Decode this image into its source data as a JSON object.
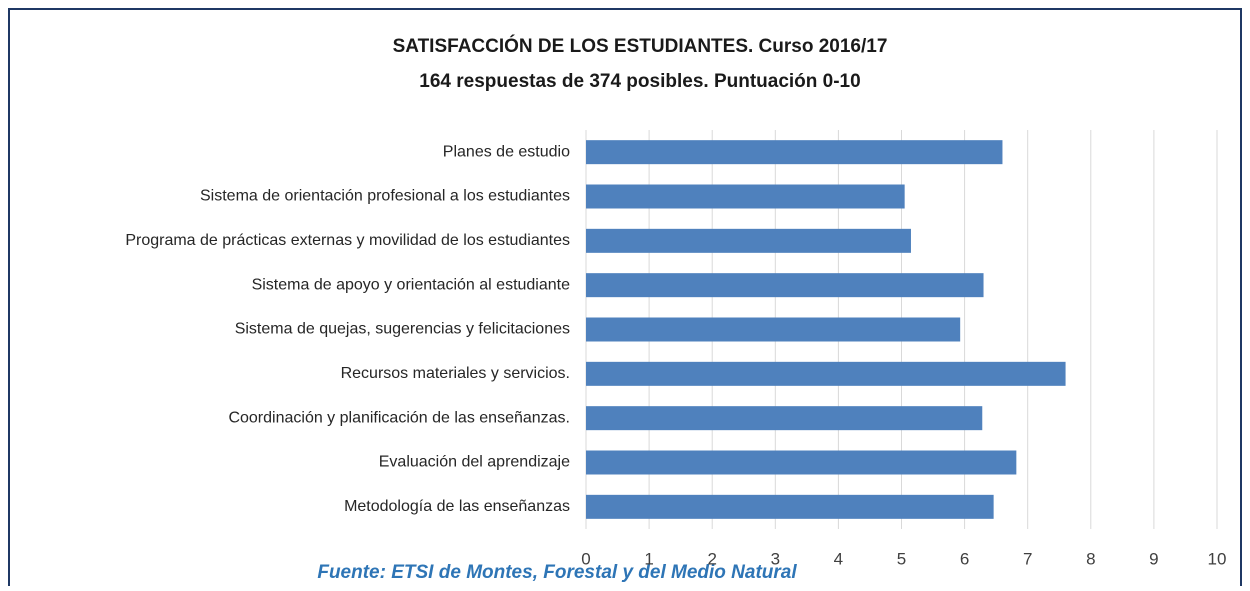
{
  "chart_data": {
    "type": "bar",
    "orientation": "horizontal",
    "title": "SATISFACCIÓN DE LOS ESTUDIANTES. Curso 2016/17",
    "subtitle": "164 respuestas de 374 posibles. Puntuación 0-10",
    "source": "Fuente: ETSI de Montes, Forestal y del Medio Natural",
    "categories": [
      "Planes de estudio",
      "Sistema de orientación profesional a los estudiantes",
      "Programa de prácticas externas y movilidad de los estudiantes",
      "Sistema de apoyo y orientación al estudiante",
      "Sistema de quejas, sugerencias y felicitaciones",
      "Recursos materiales y servicios.",
      "Coordinación y planificación de las enseñanzas.",
      "Evaluación del aprendizaje",
      "Metodología de las enseñanzas"
    ],
    "values": [
      6.6,
      5.05,
      5.15,
      6.3,
      5.93,
      7.6,
      6.28,
      6.82,
      6.46
    ],
    "color": "#4f81bd",
    "xlim": [
      0,
      10
    ],
    "xticks": [
      0,
      1,
      2,
      3,
      4,
      5,
      6,
      7,
      8,
      9,
      10
    ],
    "grid": true
  }
}
